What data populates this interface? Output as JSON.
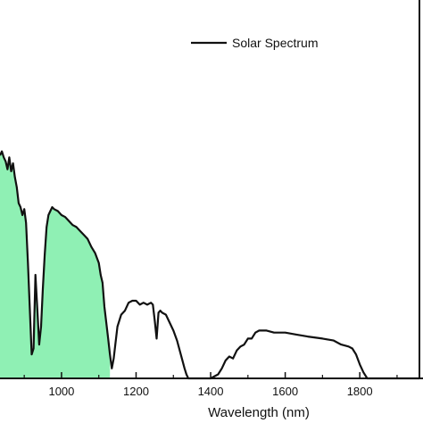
{
  "chart_data": {
    "type": "line",
    "title": "",
    "xlabel": "Wavelength (nm)",
    "ylabel": "",
    "xlim": [
      835,
      1960
    ],
    "ylim": [
      0,
      1.9
    ],
    "xticks": [
      1000,
      1200,
      1400,
      1600,
      1800
    ],
    "tick_labels": [
      "1000",
      "1200",
      "1400",
      "1600",
      "1800"
    ],
    "legend": {
      "placement": "top-right",
      "entries": [
        "Solar Spectrum"
      ]
    },
    "grid": false,
    "colors": {
      "line": "#111111",
      "fill": "#8ff0b4"
    },
    "shaded_region": {
      "from": 835,
      "to": 1130,
      "color": "#8ff0b4"
    },
    "series": [
      {
        "name": "Solar Spectrum",
        "x": [
          835,
          840,
          845,
          850,
          855,
          860,
          865,
          870,
          875,
          880,
          885,
          890,
          895,
          900,
          905,
          910,
          915,
          920,
          925,
          930,
          935,
          940,
          945,
          950,
          955,
          960,
          965,
          970,
          975,
          980,
          990,
          1000,
          1010,
          1020,
          1030,
          1040,
          1050,
          1060,
          1070,
          1080,
          1090,
          1100,
          1105,
          1110,
          1115,
          1120,
          1125,
          1130,
          1135,
          1140,
          1145,
          1150,
          1160,
          1170,
          1180,
          1190,
          1200,
          1210,
          1220,
          1230,
          1240,
          1245,
          1250,
          1255,
          1260,
          1265,
          1270,
          1280,
          1290,
          1300,
          1310,
          1320,
          1330,
          1335,
          1340,
          1345,
          1350,
          1360,
          1380,
          1400,
          1420,
          1430,
          1440,
          1450,
          1460,
          1470,
          1480,
          1490,
          1500,
          1510,
          1520,
          1530,
          1550,
          1570,
          1600,
          1630,
          1660,
          1700,
          1730,
          1750,
          1770,
          1780,
          1790,
          1800,
          1810,
          1820,
          1840,
          1880,
          1920,
          1960
        ],
        "values": [
          1.12,
          1.14,
          1.11,
          1.09,
          1.05,
          1.11,
          1.04,
          1.08,
          1.01,
          0.96,
          0.88,
          0.86,
          0.82,
          0.85,
          0.78,
          0.58,
          0.35,
          0.12,
          0.15,
          0.52,
          0.35,
          0.17,
          0.26,
          0.45,
          0.62,
          0.76,
          0.82,
          0.84,
          0.86,
          0.85,
          0.84,
          0.82,
          0.81,
          0.79,
          0.77,
          0.76,
          0.74,
          0.72,
          0.7,
          0.66,
          0.63,
          0.58,
          0.52,
          0.48,
          0.36,
          0.28,
          0.2,
          0.12,
          0.05,
          0.1,
          0.18,
          0.26,
          0.32,
          0.34,
          0.38,
          0.39,
          0.39,
          0.37,
          0.38,
          0.37,
          0.38,
          0.37,
          0.29,
          0.2,
          0.33,
          0.34,
          0.33,
          0.32,
          0.28,
          0.24,
          0.19,
          0.12,
          0.05,
          0.02,
          0.0,
          0.0,
          0.0,
          0.0,
          0.0,
          0.0,
          0.02,
          0.05,
          0.09,
          0.11,
          0.1,
          0.14,
          0.16,
          0.17,
          0.2,
          0.2,
          0.23,
          0.24,
          0.24,
          0.23,
          0.23,
          0.22,
          0.21,
          0.2,
          0.19,
          0.17,
          0.16,
          0.15,
          0.12,
          0.07,
          0.03,
          0.0,
          0.0,
          0.0,
          0.0,
          0.0
        ]
      }
    ]
  }
}
